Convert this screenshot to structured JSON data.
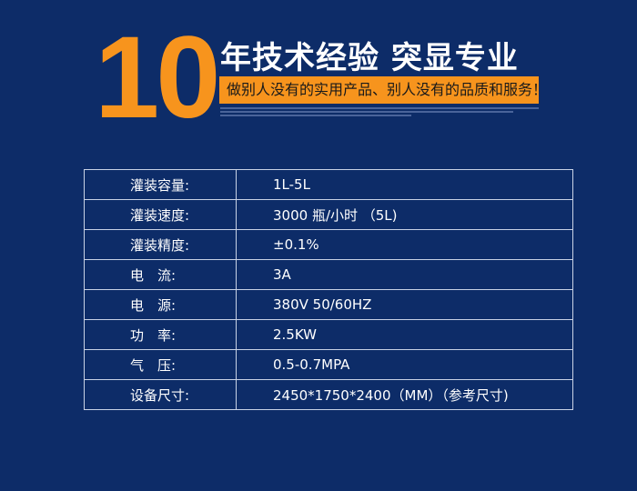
{
  "header": {
    "big_number": "10",
    "title": "年技术经验 突显专业",
    "slogan": "做别人没有的实用产品、别人没有的品质和服务！",
    "accent_color": "#f7941d",
    "background_color": "#0d2c68"
  },
  "specs": [
    {
      "label": "灌装容量:",
      "value": "1L-5L"
    },
    {
      "label": "灌装速度:",
      "value": "3000 瓶/小时 （5L)"
    },
    {
      "label": "灌装精度:",
      "value": "±0.1%"
    },
    {
      "label": "电　流:",
      "value": "3A"
    },
    {
      "label": "电　源:",
      "value": "380V 50/60HZ"
    },
    {
      "label": "功　率:",
      "value": "2.5KW"
    },
    {
      "label": "气　压:",
      "value": "0.5-0.7MPA"
    },
    {
      "label": "设备尺寸:",
      "value": "2450*1750*2400（MM）（参考尺寸)"
    }
  ]
}
